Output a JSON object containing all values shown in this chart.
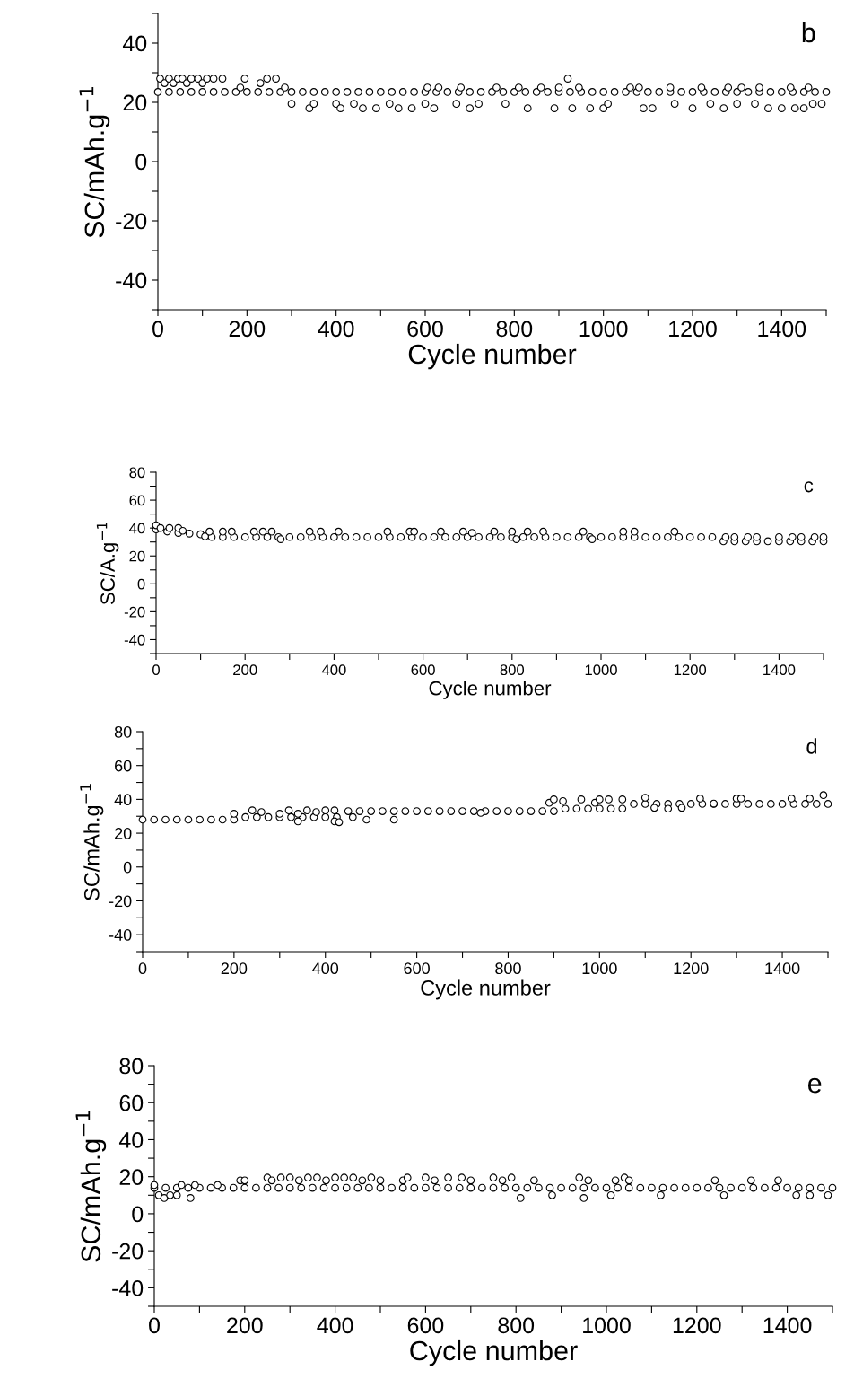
{
  "chart_data": [
    {
      "type": "scatter",
      "xlabel": "Cycle number",
      "ylabel": "SC/mAh.g$^{−1}$",
      "annotations": [
        "b"
      ],
      "marker": "circle",
      "grid": false,
      "xlim": [
        0,
        1500
      ],
      "ylim": [
        -50,
        50
      ],
      "xticks": [
        0,
        {
          "value": 100,
          "label": null
        },
        200,
        {
          "value": 300,
          "label": null
        },
        400,
        {
          "value": 500,
          "label": null
        },
        600,
        {
          "value": 700,
          "label": null
        },
        800,
        {
          "value": 900,
          "label": null
        },
        1000,
        {
          "value": 1100,
          "label": null
        },
        1200,
        {
          "value": 1300,
          "label": null
        },
        1400,
        {
          "value": 1500,
          "label": null
        }
      ],
      "yticks": [
        {
          "value": -50,
          "label": null
        },
        -40,
        {
          "value": -30,
          "label": null
        },
        -20,
        {
          "value": -10,
          "label": null
        },
        0,
        {
          "value": 10,
          "label": null
        },
        20,
        {
          "value": 30,
          "label": null
        },
        40,
        {
          "value": 50,
          "label": null
        }
      ],
      "series": [
        {
          "color": "#000000",
          "x": [
            0,
            25,
            50,
            75,
            100,
            125,
            150,
            175,
            200,
            225,
            250,
            275,
            300,
            325,
            350,
            375,
            400,
            425,
            450,
            475,
            500,
            525,
            550,
            575,
            600,
            625,
            650,
            675,
            700,
            725,
            750,
            775,
            800,
            825,
            850,
            875,
            900,
            925,
            950,
            975,
            1000,
            1025,
            1050,
            1075,
            1100,
            1125,
            1150,
            1175,
            1200,
            1225,
            1250,
            1275,
            1300,
            1325,
            1350,
            1375,
            1400,
            1425,
            1450,
            1475,
            1500
          ],
          "values": [
            23.5,
            23.5,
            23.5,
            23.5,
            23.5,
            23.5,
            23.5,
            23.5,
            23.5,
            23.5,
            23.5,
            23.5,
            23.5,
            23.5,
            23.5,
            23.5,
            23.5,
            23.5,
            23.5,
            23.5,
            23.5,
            23.5,
            23.5,
            23.5,
            23.5,
            23.5,
            23.5,
            23.5,
            23.5,
            23.5,
            23.5,
            23.5,
            23.5,
            23.5,
            23.5,
            23.5,
            23.5,
            23.5,
            23.5,
            23.5,
            23.5,
            23.5,
            23.5,
            23.5,
            23.5,
            23.5,
            23.5,
            23.5,
            23.5,
            23.5,
            23.5,
            23.5,
            23.5,
            23.5,
            23.5,
            23.5,
            23.5,
            23.5,
            23.5,
            23.5,
            23.5
          ]
        },
        {
          "color": "#000000",
          "x": [
            5,
            15,
            25,
            35,
            45,
            55,
            65,
            75,
            90,
            100,
            110,
            125,
            145,
            185,
            195,
            230,
            245,
            265,
            285,
            300,
            340,
            350,
            400,
            410,
            440,
            460,
            490,
            520,
            540,
            570,
            600,
            620,
            605,
            630,
            670,
            680,
            700,
            720,
            760,
            780,
            810,
            830,
            860,
            890,
            900,
            920,
            930,
            945,
            970,
            1000,
            1010,
            1060,
            1080,
            1090,
            1110,
            1150,
            1160,
            1200,
            1220,
            1240,
            1270,
            1280,
            1300,
            1310,
            1340,
            1350,
            1370,
            1400,
            1420,
            1430,
            1450,
            1460,
            1470,
            1490
          ],
          "values": [
            28,
            26.5,
            28,
            26.5,
            28,
            28,
            26.5,
            28,
            28,
            26.5,
            28,
            28,
            28,
            25,
            28,
            26.5,
            28,
            28,
            25,
            19.5,
            18,
            19.5,
            19.5,
            18,
            19.5,
            18,
            18,
            19.5,
            18,
            18,
            19.5,
            18,
            25,
            25,
            19.5,
            25,
            18,
            19.5,
            25,
            19.5,
            25,
            18,
            25,
            18,
            25,
            28,
            18,
            25,
            18,
            18,
            19.5,
            25,
            25,
            18,
            18,
            25,
            19.5,
            18,
            25,
            19.5,
            18,
            25,
            19.5,
            25,
            19.5,
            25,
            18,
            18,
            25,
            18,
            18,
            25,
            19.5,
            19.5
          ]
        }
      ]
    },
    {
      "type": "scatter",
      "xlabel": "Cycle number",
      "ylabel": "SC/A.g$^{−1}$",
      "annotations": [
        "c"
      ],
      "marker": "circle",
      "grid": false,
      "xlim": [
        0,
        1500
      ],
      "ylim": [
        -50,
        80
      ],
      "xticks": [
        0,
        {
          "value": 100,
          "label": null
        },
        200,
        {
          "value": 300,
          "label": null
        },
        400,
        {
          "value": 500,
          "label": null
        },
        600,
        {
          "value": 700,
          "label": null
        },
        800,
        {
          "value": 900,
          "label": null
        },
        1000,
        {
          "value": 1100,
          "label": null
        },
        1200,
        {
          "value": 1300,
          "label": null
        },
        1400,
        {
          "value": 1500,
          "label": null
        }
      ],
      "yticks": [
        {
          "value": -50,
          "label": null
        },
        -40,
        {
          "value": -30,
          "label": null
        },
        -20,
        {
          "value": -10,
          "label": null
        },
        0,
        {
          "value": 10,
          "label": null
        },
        20,
        {
          "value": 30,
          "label": null
        },
        40,
        {
          "value": 50,
          "label": null
        },
        60,
        {
          "value": 70,
          "label": null
        },
        80
      ],
      "series": [
        {
          "color": "#000000",
          "x": [
            0,
            25,
            50,
            75,
            100,
            125,
            150,
            175,
            200,
            225,
            250,
            275,
            300,
            325,
            350,
            375,
            400,
            425,
            450,
            475,
            500,
            525,
            550,
            575,
            600,
            625,
            650,
            675,
            700,
            725,
            750,
            775,
            800,
            825,
            850,
            875,
            900,
            925,
            950,
            975,
            1000,
            1025,
            1050,
            1075,
            1100,
            1125,
            1150,
            1175,
            1200,
            1225,
            1250,
            1275,
            1300,
            1325,
            1350,
            1375,
            1400,
            1425,
            1450,
            1475,
            1500
          ],
          "values": [
            39,
            37.5,
            36.5,
            36,
            35.5,
            33.5,
            33.5,
            33.5,
            33.5,
            33.5,
            33.5,
            33.5,
            33.5,
            33.5,
            33.5,
            33.5,
            33.5,
            33.5,
            33.5,
            33.5,
            33.5,
            33.5,
            33.5,
            33.5,
            33.5,
            33.5,
            33.5,
            33.5,
            33.5,
            33.5,
            33.5,
            33.5,
            33.5,
            33.5,
            33.5,
            33.5,
            33.5,
            33.5,
            33.5,
            33.5,
            33.5,
            33.5,
            33.5,
            33.5,
            33.5,
            33.5,
            33.5,
            33.5,
            33.5,
            33.5,
            33.5,
            30.5,
            30.5,
            30.5,
            30.5,
            30.5,
            30.5,
            30.5,
            30.5,
            30.5,
            30.5
          ]
        },
        {
          "color": "#000000",
          "x": [
            0,
            10,
            30,
            50,
            60,
            110,
            120,
            150,
            170,
            220,
            240,
            260,
            280,
            345,
            370,
            410,
            520,
            570,
            580,
            640,
            690,
            710,
            760,
            800,
            810,
            835,
            870,
            960,
            980,
            1050,
            1075,
            1165,
            1280,
            1300,
            1330,
            1350,
            1400,
            1430,
            1450,
            1480,
            1500
          ],
          "values": [
            42,
            40,
            40,
            40,
            38,
            34,
            37.4,
            37.4,
            37.4,
            37.4,
            37.4,
            37.4,
            32,
            37.4,
            37.4,
            37.4,
            37.4,
            37.4,
            37.4,
            37.4,
            37.4,
            36.5,
            37.4,
            37.4,
            32,
            37.4,
            37.4,
            37.4,
            32,
            37.4,
            37.4,
            37.4,
            33.5,
            33.5,
            33.5,
            33.5,
            33.5,
            33.5,
            33.5,
            33.5,
            33.5
          ]
        }
      ]
    },
    {
      "type": "scatter",
      "xlabel": "Cycle number",
      "ylabel": "SC/mAh.g$^{−1}$",
      "annotations": [
        "d"
      ],
      "marker": "circle",
      "grid": false,
      "xlim": [
        0,
        1500
      ],
      "ylim": [
        -50,
        80
      ],
      "xticks": [
        0,
        {
          "value": 100,
          "label": null
        },
        200,
        {
          "value": 300,
          "label": null
        },
        400,
        {
          "value": 500,
          "label": null
        },
        600,
        {
          "value": 700,
          "label": null
        },
        800,
        {
          "value": 900,
          "label": null
        },
        1000,
        {
          "value": 1100,
          "label": null
        },
        1200,
        {
          "value": 1300,
          "label": null
        },
        1400,
        {
          "value": 1500,
          "label": null
        }
      ],
      "yticks": [
        {
          "value": -50,
          "label": null
        },
        -40,
        {
          "value": -30,
          "label": null
        },
        -20,
        {
          "value": -10,
          "label": null
        },
        0,
        {
          "value": 10,
          "label": null
        },
        20,
        {
          "value": 30,
          "label": null
        },
        40,
        {
          "value": 50,
          "label": null
        },
        60,
        {
          "value": 70,
          "label": null
        },
        80
      ],
      "series": [
        {
          "color": "#000000",
          "x": [
            0,
            25,
            50,
            75,
            100,
            125,
            150,
            175,
            200,
            225,
            250,
            275,
            300,
            325,
            350,
            375,
            400,
            425,
            450,
            475,
            500,
            525,
            550,
            575,
            600,
            625,
            650,
            675,
            700,
            725,
            750,
            775,
            800,
            825,
            850,
            875,
            900,
            925,
            950,
            975,
            1000,
            1025,
            1050,
            1075,
            1100,
            1125,
            1150,
            1175,
            1200,
            1225,
            1250,
            1275,
            1300,
            1325,
            1350,
            1375,
            1400,
            1425,
            1450,
            1475,
            1500
          ],
          "values": [
            28,
            28,
            28,
            28,
            28,
            28,
            28,
            28,
            28,
            29.5,
            29.5,
            29.5,
            29.5,
            29.5,
            29.5,
            29.5,
            29.5,
            29.5,
            33,
            33,
            33,
            33,
            33,
            33,
            33,
            33,
            33,
            33,
            33,
            33,
            33,
            33,
            33,
            33,
            33,
            33,
            33,
            34.5,
            34.5,
            34.5,
            34.5,
            34.5,
            34.5,
            37.3,
            37.3,
            37.3,
            37.3,
            37.3,
            37.3,
            37.3,
            37.3,
            37.3,
            37.3,
            37.3,
            37.3,
            37.3,
            37.3,
            37.3,
            37.3,
            37.3,
            37.3
          ]
        },
        {
          "color": "#000000",
          "x": [
            200,
            240,
            260,
            300,
            320,
            340,
            360,
            380,
            400,
            420,
            340,
            420,
            430,
            460,
            490,
            550,
            740,
            890,
            900,
            920,
            960,
            990,
            1000,
            1020,
            1050,
            1100,
            1120,
            1150,
            1180,
            1220,
            1250,
            1300,
            1310,
            1420,
            1460,
            1490
          ],
          "values": [
            31.5,
            33.5,
            32.5,
            31.5,
            33.5,
            31.5,
            33.5,
            32.5,
            33.5,
            33.5,
            27,
            27,
            26.5,
            29.5,
            28,
            28,
            32,
            38,
            40,
            39,
            40,
            38,
            40,
            40,
            40,
            41,
            35,
            34.5,
            35,
            40.5,
            37.5,
            40.5,
            40.5,
            40.5,
            40.5,
            42.5
          ]
        }
      ]
    },
    {
      "type": "scatter",
      "xlabel": "Cycle number",
      "ylabel": "SC/mAh.g$^{−1}$",
      "annotations": [
        "e"
      ],
      "marker": "circle",
      "grid": false,
      "xlim": [
        0,
        1500
      ],
      "ylim": [
        -50,
        80
      ],
      "xticks": [
        0,
        {
          "value": 100,
          "label": null
        },
        200,
        {
          "value": 300,
          "label": null
        },
        400,
        {
          "value": 500,
          "label": null
        },
        600,
        {
          "value": 700,
          "label": null
        },
        800,
        {
          "value": 900,
          "label": null
        },
        1000,
        {
          "value": 1100,
          "label": null
        },
        1200,
        {
          "value": 1300,
          "label": null
        },
        1400,
        {
          "value": 1500,
          "label": null
        }
      ],
      "yticks": [
        {
          "value": -50,
          "label": null
        },
        -40,
        {
          "value": -30,
          "label": null
        },
        -20,
        {
          "value": -10,
          "label": null
        },
        0,
        {
          "value": 10,
          "label": null
        },
        20,
        {
          "value": 30,
          "label": null
        },
        40,
        {
          "value": 50,
          "label": null
        },
        60,
        {
          "value": 70,
          "label": null
        },
        80
      ],
      "series": [
        {
          "color": "#000000",
          "x": [
            0,
            25,
            50,
            75,
            100,
            125,
            150,
            175,
            200,
            225,
            250,
            275,
            300,
            325,
            350,
            375,
            400,
            425,
            450,
            475,
            500,
            525,
            550,
            575,
            600,
            625,
            650,
            675,
            700,
            725,
            750,
            775,
            800,
            825,
            850,
            875,
            900,
            925,
            950,
            975,
            1000,
            1025,
            1050,
            1075,
            1100,
            1125,
            1150,
            1175,
            1200,
            1225,
            1250,
            1275,
            1300,
            1325,
            1350,
            1375,
            1400,
            1425,
            1450,
            1475,
            1500
          ],
          "values": [
            14,
            14,
            14,
            14,
            14,
            14,
            14,
            14,
            14,
            14,
            14,
            14,
            14,
            14,
            14,
            14,
            14,
            14,
            14,
            14,
            14,
            14,
            14,
            14,
            14,
            14,
            14,
            14,
            14,
            14,
            14,
            14,
            14,
            14,
            14,
            14,
            14,
            14,
            14,
            14,
            14,
            14,
            14,
            14,
            14,
            14,
            14,
            14,
            14,
            14,
            14,
            14,
            14,
            14,
            14,
            14,
            14,
            14,
            14,
            14,
            14
          ]
        },
        {
          "color": "#000000",
          "x": [
            0,
            10,
            22,
            35,
            50,
            60,
            80,
            90,
            140,
            190,
            200,
            250,
            260,
            280,
            300,
            320,
            340,
            360,
            380,
            400,
            420,
            440,
            460,
            480,
            500,
            550,
            560,
            600,
            620,
            650,
            680,
            700,
            750,
            770,
            790,
            810,
            840,
            880,
            940,
            950,
            960,
            1010,
            1020,
            1040,
            1050,
            1120,
            1240,
            1260,
            1320,
            1380,
            1420,
            1450,
            1490
          ],
          "values": [
            15.5,
            10,
            8.5,
            10,
            10,
            15.5,
            8.5,
            15.5,
            15.5,
            18,
            18,
            19.5,
            18,
            19.5,
            19.5,
            18,
            19.5,
            19.5,
            18,
            19.5,
            19.5,
            19.5,
            18,
            19.5,
            18,
            18,
            19.5,
            19.5,
            18,
            19.5,
            19.5,
            18,
            19.5,
            18,
            19.5,
            8.5,
            18,
            10,
            19.5,
            8.5,
            18,
            10,
            18,
            19.5,
            18,
            10,
            18,
            10,
            18,
            18,
            10,
            10,
            10
          ]
        }
      ]
    }
  ]
}
